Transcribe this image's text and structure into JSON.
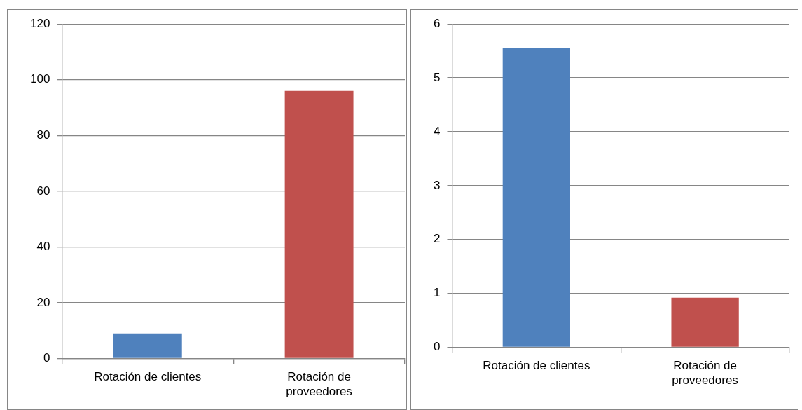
{
  "chart_data": [
    {
      "type": "bar",
      "categories": [
        "Rotación de clientes",
        "Rotación de proveedores"
      ],
      "values": [
        9,
        96
      ],
      "colors": [
        "#4f81bd",
        "#c0504d"
      ],
      "ylim": [
        0,
        120
      ],
      "yticks": [
        0,
        20,
        40,
        60,
        80,
        100,
        120
      ],
      "grid": "y"
    },
    {
      "type": "bar",
      "categories": [
        "Rotación de clientes",
        "Rotación de proveedores"
      ],
      "values": [
        5.55,
        0.92
      ],
      "colors": [
        "#4f81bd",
        "#c0504d"
      ],
      "ylim": [
        0,
        6
      ],
      "yticks": [
        0,
        1,
        2,
        3,
        4,
        5,
        6
      ],
      "grid": "y"
    }
  ]
}
